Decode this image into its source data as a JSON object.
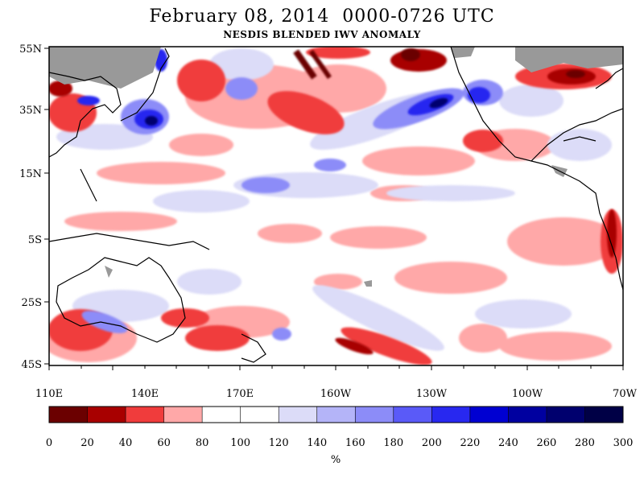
{
  "header": {
    "title": "February 08, 2014  0000-0726 UTC",
    "subtitle": "NESDIS BLENDED IWV ANOMALY"
  },
  "map": {
    "lon_labels": [
      "110E",
      "140E",
      "170E",
      "160W",
      "130W",
      "100W",
      "70W"
    ],
    "lat_labels": [
      "55N",
      "35N",
      "15N",
      "5S",
      "25S",
      "45S"
    ]
  },
  "colorbar": {
    "unit": "%",
    "ticks": [
      "0",
      "20",
      "40",
      "60",
      "80",
      "100",
      "120",
      "140",
      "160",
      "180",
      "200",
      "220",
      "240",
      "260",
      "280",
      "300"
    ],
    "colors": [
      "#6b0000",
      "#a80000",
      "#f03c3c",
      "#ffa8a8",
      "#ffffff",
      "#dcdcf8",
      "#b4b4f8",
      "#8c8cf8",
      "#5a5af8",
      "#2828f0",
      "#0000d2",
      "#0000a0",
      "#00006e",
      "#000046"
    ],
    "land_color": "#999999"
  }
}
